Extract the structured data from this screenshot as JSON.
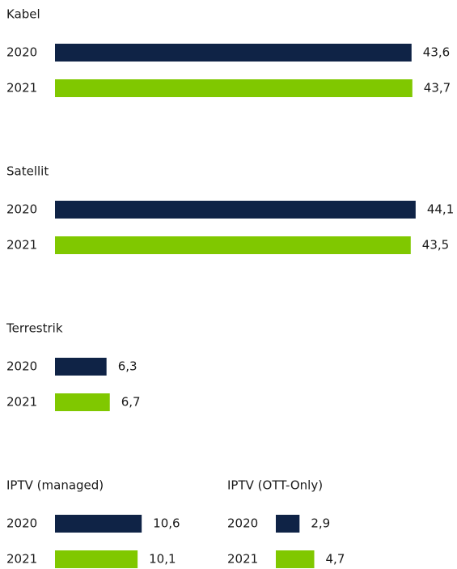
{
  "chart_data": [
    {
      "type": "bar",
      "orientation": "horizontal",
      "title": "Kabel",
      "categories": [
        "2020",
        "2021"
      ],
      "values": [
        43.6,
        43.7
      ],
      "value_labels": [
        "43,6",
        "43,7"
      ],
      "colors": [
        "#0f2346",
        "#80c800"
      ]
    },
    {
      "type": "bar",
      "orientation": "horizontal",
      "title": "Satellit",
      "categories": [
        "2020",
        "2021"
      ],
      "values": [
        44.1,
        43.5
      ],
      "value_labels": [
        "44,1",
        "43,5"
      ],
      "colors": [
        "#0f2346",
        "#80c800"
      ]
    },
    {
      "type": "bar",
      "orientation": "horizontal",
      "title": "Terrestrik",
      "categories": [
        "2020",
        "2021"
      ],
      "values": [
        6.3,
        6.7
      ],
      "value_labels": [
        "6,3",
        "6,7"
      ],
      "colors": [
        "#0f2346",
        "#80c800"
      ]
    },
    {
      "type": "bar",
      "orientation": "horizontal",
      "title": "IPTV (managed)",
      "categories": [
        "2020",
        "2021"
      ],
      "values": [
        10.6,
        10.1
      ],
      "value_labels": [
        "10,6",
        "10,1"
      ],
      "colors": [
        "#0f2346",
        "#80c800"
      ]
    },
    {
      "type": "bar",
      "orientation": "horizontal",
      "title": "IPTV (OTT-Only)",
      "categories": [
        "2020",
        "2021"
      ],
      "values": [
        2.9,
        4.7
      ],
      "value_labels": [
        "2,9",
        "4,7"
      ],
      "colors": [
        "#0f2346",
        "#80c800"
      ]
    }
  ]
}
